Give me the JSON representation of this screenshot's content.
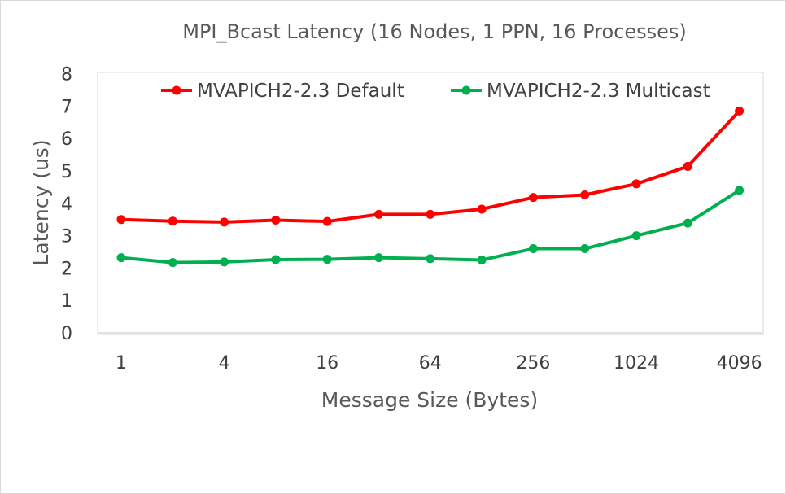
{
  "chart_data": {
    "type": "line",
    "title": "MPI_Bcast Latency (16 Nodes, 1 PPN, 16 Processes)",
    "xlabel": "Message Size (Bytes)",
    "ylabel": "Latency (us)",
    "x": [
      1,
      2,
      4,
      8,
      16,
      32,
      64,
      128,
      256,
      512,
      1024,
      2048,
      4096
    ],
    "x_tick_labels": [
      "1",
      "",
      "4",
      "",
      "16",
      "",
      "64",
      "",
      "256",
      "",
      "1024",
      "",
      "4096"
    ],
    "y_ticks": [
      "0",
      "1",
      "2",
      "3",
      "4",
      "5",
      "6",
      "7",
      "8"
    ],
    "ylim": [
      0,
      8
    ],
    "grid": false,
    "legend_position": "top",
    "series": [
      {
        "name": "MVAPICH2-2.3 Default",
        "color": "#ff0000",
        "values": [
          3.5,
          3.45,
          3.42,
          3.48,
          3.44,
          3.66,
          3.66,
          3.82,
          4.18,
          4.26,
          4.6,
          5.14,
          6.85
        ]
      },
      {
        "name": "MVAPICH2-2.3 Multicast",
        "color": "#00b050",
        "values": [
          2.32,
          2.17,
          2.19,
          2.26,
          2.27,
          2.32,
          2.29,
          2.25,
          2.6,
          2.6,
          3.0,
          3.39,
          4.4
        ]
      }
    ]
  }
}
